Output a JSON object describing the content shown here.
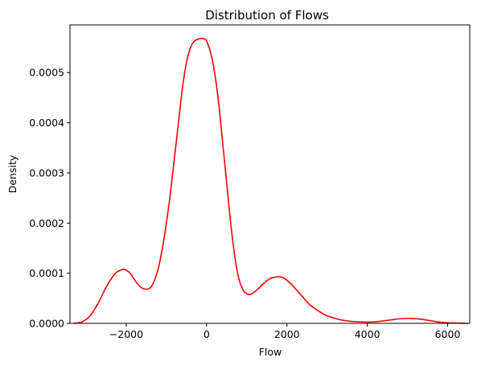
{
  "chart_data": {
    "type": "line",
    "title": "Distribution of Flows",
    "xlabel": "Flow",
    "ylabel": "Density",
    "xlim": [
      -3400,
      6550
    ],
    "ylim": [
      0,
      0.000595
    ],
    "xticks": [
      -2000,
      0,
      2000,
      4000,
      6000
    ],
    "xtick_labels": [
      "−2000",
      "0",
      "2000",
      "4000",
      "6000"
    ],
    "yticks": [
      0,
      0.0001,
      0.0002,
      0.0003,
      0.0004,
      0.0005
    ],
    "ytick_labels": [
      "0.0000",
      "0.0001",
      "0.0002",
      "0.0003",
      "0.0004",
      "0.0005"
    ],
    "grid": false,
    "legend": "none",
    "line_color": "#ff0000",
    "series": [
      {
        "x": [
          -3300,
          -3100,
          -2900,
          -2700,
          -2500,
          -2300,
          -2200,
          -2100,
          -2050,
          -2000,
          -1900,
          -1800,
          -1700,
          -1600,
          -1500,
          -1400,
          -1300,
          -1200,
          -1100,
          -1000,
          -900,
          -800,
          -700,
          -600,
          -500,
          -400,
          -300,
          -200,
          -100,
          -50,
          0,
          100,
          200,
          300,
          400,
          500,
          600,
          700,
          800,
          900,
          1000,
          1100,
          1200,
          1300,
          1400,
          1500,
          1600,
          1700,
          1800,
          1900,
          2000,
          2050,
          2100,
          2200,
          2300,
          2400,
          2500,
          2600,
          2800,
          3000,
          3200,
          3400,
          3600,
          3800,
          4000,
          4200,
          4400,
          4600,
          4800,
          5000,
          5100,
          5200,
          5400,
          5600,
          5800,
          6000,
          6200,
          6500
        ],
        "y": [
          1e-07,
          3e-06,
          1.5e-05,
          4e-05,
          7.2e-05,
          9.7e-05,
          0.000104,
          0.000107,
          0.000108,
          0.000106,
          0.0001,
          8.8e-05,
          7.7e-05,
          7e-05,
          6.8e-05,
          7.1e-05,
          8.5e-05,
          0.00011,
          0.00015,
          0.0002,
          0.00026,
          0.00033,
          0.0004,
          0.00047,
          0.00052,
          0.00055,
          0.000563,
          0.000567,
          0.000568,
          0.000567,
          0.000563,
          0.00054,
          0.0005,
          0.00044,
          0.00036,
          0.00028,
          0.0002,
          0.000135,
          9e-05,
          6.8e-05,
          5.9e-05,
          5.8e-05,
          6.3e-05,
          7e-05,
          7.8e-05,
          8.5e-05,
          9e-05,
          9.2e-05,
          9.3e-05,
          9.1e-05,
          8.6e-05,
          8.2e-05,
          7.9e-05,
          7e-05,
          6.1e-05,
          5.2e-05,
          4.3e-05,
          3.5e-05,
          2.4e-05,
          1.5e-05,
          1e-05,
          6e-06,
          4e-06,
          3e-06,
          2.5e-06,
          3e-06,
          5e-06,
          7e-06,
          9e-06,
          1e-05,
          9.8e-06,
          9.2e-06,
          7.5e-06,
          5e-06,
          2.5e-06,
          1.2e-06,
          5e-07,
          1e-07
        ]
      }
    ]
  }
}
